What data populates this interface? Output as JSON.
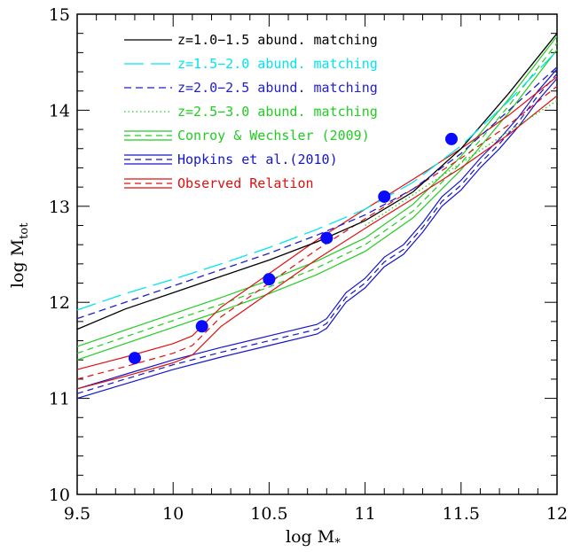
{
  "chart_data": {
    "type": "line",
    "xlabel": "log M",
    "xlabel_sub": "*",
    "ylabel": "log M",
    "ylabel_sub": "tot",
    "xlim": [
      9.5,
      12
    ],
    "ylim": [
      10,
      15
    ],
    "x_ticks": [
      9.5,
      10,
      10.5,
      11,
      11.5,
      12
    ],
    "x_tick_labels": [
      "9.5",
      "10",
      "10.5",
      "11",
      "11.5",
      "12"
    ],
    "y_ticks": [
      10,
      11,
      12,
      13,
      14,
      15
    ],
    "y_tick_labels": [
      "10",
      "11",
      "12",
      "13",
      "14",
      "15"
    ],
    "legend_position": "top-left",
    "series": [
      {
        "name": "z=1.0−1.5 abund. matching",
        "color": "#000000",
        "style": "solid",
        "x": [
          9.5,
          9.75,
          10.0,
          10.25,
          10.5,
          10.75,
          11.0,
          11.25,
          11.5,
          11.75,
          12.0
        ],
        "y": [
          11.72,
          11.93,
          12.1,
          12.27,
          12.44,
          12.63,
          12.85,
          13.15,
          13.6,
          14.18,
          14.8
        ]
      },
      {
        "name": "z=1.5−2.0 abund. matching",
        "color": "#00e5ee",
        "style": "longdash",
        "x": [
          9.5,
          9.75,
          10.0,
          10.25,
          10.5,
          10.75,
          11.0,
          11.25,
          11.5,
          11.75,
          12.0
        ],
        "y": [
          11.92,
          12.09,
          12.24,
          12.4,
          12.57,
          12.76,
          12.97,
          13.25,
          13.63,
          14.1,
          14.62
        ]
      },
      {
        "name": "z=2.0−2.5 abund. matching",
        "color": "#1f1fcc",
        "style": "dash",
        "x": [
          9.5,
          9.75,
          10.0,
          10.25,
          10.5,
          10.75,
          11.0,
          11.25,
          11.5,
          11.75,
          12.0
        ],
        "y": [
          11.83,
          12.0,
          12.17,
          12.34,
          12.51,
          12.7,
          12.91,
          13.18,
          13.55,
          14.0,
          14.45
        ]
      },
      {
        "name": "z=2.5−3.0 abund. matching",
        "color": "#22cc22",
        "style": "dotted",
        "x": [
          11.0,
          11.25,
          11.5,
          11.75,
          12.0
        ],
        "y": [
          12.8,
          13.12,
          13.45,
          13.78,
          14.1
        ]
      }
    ],
    "bands": [
      {
        "name": "Conroy & Wechsler (2009)",
        "color": "#22cc22",
        "x": [
          9.5,
          9.75,
          10.0,
          10.25,
          10.5,
          10.75,
          11.0,
          11.25,
          11.5,
          11.75,
          12.0
        ],
        "y": [
          11.47,
          11.64,
          11.81,
          11.98,
          12.16,
          12.36,
          12.6,
          12.95,
          13.45,
          14.05,
          14.7
        ],
        "half_width": 0.07
      },
      {
        "name": "Hopkins et al.(2010)",
        "color": "#1515cc",
        "x": [
          9.5,
          9.75,
          10.0,
          10.25,
          10.5,
          10.75,
          10.8,
          10.9,
          11.0,
          11.1,
          11.2,
          11.3,
          11.4,
          11.5,
          11.6,
          11.7,
          11.8,
          11.9,
          12.0
        ],
        "y": [
          11.05,
          11.2,
          11.35,
          11.48,
          11.6,
          11.72,
          11.78,
          12.05,
          12.2,
          12.42,
          12.55,
          12.78,
          13.05,
          13.22,
          13.45,
          13.65,
          13.88,
          14.15,
          14.38
        ],
        "half_width": 0.05
      },
      {
        "name": "Observed Relation",
        "color": "#dd1111",
        "x": [
          9.5,
          9.75,
          10.0,
          10.1,
          10.25,
          10.5,
          10.75,
          11.0,
          11.25,
          11.5,
          11.75,
          12.0
        ],
        "y": [
          11.2,
          11.33,
          11.47,
          11.55,
          11.85,
          12.2,
          12.55,
          12.87,
          13.18,
          13.5,
          13.85,
          14.25
        ],
        "half_width": 0.1
      }
    ],
    "points": {
      "color": "#0a0aff",
      "x": [
        9.8,
        10.15,
        10.5,
        10.8,
        11.1,
        11.45
      ],
      "y": [
        11.42,
        11.75,
        12.24,
        12.67,
        13.1,
        13.7
      ]
    }
  }
}
